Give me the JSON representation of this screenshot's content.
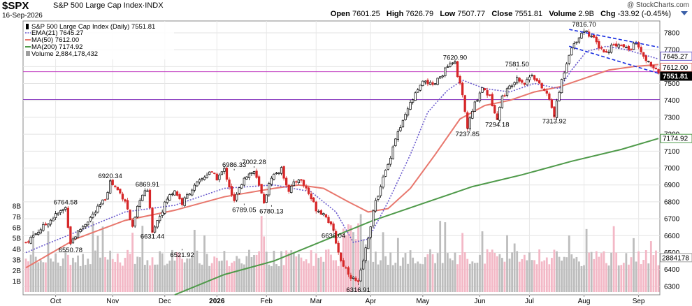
{
  "header": {
    "symbol": "$SPX",
    "description": "S&P 500 Large Cap Index",
    "exchange": "INDX",
    "date": "16-Sep-2026",
    "open_label": "Open",
    "open": "7601.25",
    "high_label": "High",
    "high": "7626.79",
    "low_label": "Low",
    "low": "7507.77",
    "close_label": "Close",
    "close": "7551.81",
    "volume_label": "Volume",
    "volume": "2.9B",
    "chg_label": "Chg",
    "chg": "-33.92 (-0.45%)",
    "watermark": "@ StockCharts.com"
  },
  "legend": {
    "main": "S&P 500 Large Cap Index (Daily) 7551.81",
    "ema": "EMA(21) 7645.27",
    "ma50": "MA(50) 7612.00",
    "ma200": "MA(200) 7174.92",
    "volume": "Volume 2,884,178,432"
  },
  "colors": {
    "up": "#000000",
    "down": "#d62728",
    "ema": "#6a5acd",
    "ma50": "#e8776d",
    "ma200": "#4f9a4a",
    "volume_up": "#bdbdbd",
    "volume_down": "#f3b8c6",
    "hline_upper": "#c03cc0",
    "hline_lower": "#8a3cc0",
    "channel": "#1a2fe0"
  },
  "chart_data": {
    "type": "line",
    "subtype": "candlestick",
    "ylim": [
      6250,
      7870
    ],
    "ytick_values": [
      6300,
      6400,
      6500,
      6600,
      6700,
      6800,
      6900,
      7000,
      7100,
      7200,
      7300,
      7400,
      7500,
      7600,
      7700,
      7800
    ],
    "ytick_labels": [
      "6300",
      "6400",
      "6500",
      "6600",
      "6700",
      "6800",
      "6900",
      "7000",
      "7100",
      "7200",
      "7300",
      "7400",
      "7500",
      "7600",
      "7700",
      "7800"
    ],
    "volume_ticks": [
      "1B",
      "2B",
      "3B",
      "4B",
      "5B",
      "6B",
      "7B",
      "8B"
    ],
    "volume_tick_values": [
      1,
      2,
      3,
      4,
      5,
      6,
      7,
      8
    ],
    "x_labels": [
      "Oct",
      "Nov",
      "Dec",
      "2026",
      "Feb",
      "Mar",
      "Apr",
      "May",
      "Jun",
      "Jul",
      "Aug",
      "Sep"
    ],
    "x_label_day": [
      12,
      35,
      56,
      77,
      97,
      117,
      139,
      160,
      183,
      203,
      225,
      247
    ],
    "n_days": 256,
    "close_points": [
      [
        0,
        6560
      ],
      [
        6,
        6640
      ],
      [
        12,
        6720
      ],
      [
        16,
        6765
      ],
      [
        18,
        6560
      ],
      [
        22,
        6640
      ],
      [
        28,
        6740
      ],
      [
        32,
        6820
      ],
      [
        34,
        6920
      ],
      [
        37,
        6870
      ],
      [
        40,
        6810
      ],
      [
        43,
        6640
      ],
      [
        46,
        6820
      ],
      [
        49,
        6870
      ],
      [
        51,
        6630
      ],
      [
        54,
        6720
      ],
      [
        57,
        6820
      ],
      [
        60,
        6870
      ],
      [
        63,
        6790
      ],
      [
        66,
        6860
      ],
      [
        70,
        6920
      ],
      [
        74,
        6980
      ],
      [
        77,
        6940
      ],
      [
        80,
        6990
      ],
      [
        84,
        6800
      ],
      [
        88,
        6950
      ],
      [
        92,
        6980
      ],
      [
        96,
        6800
      ],
      [
        99,
        6950
      ],
      [
        103,
        6990
      ],
      [
        106,
        6870
      ],
      [
        110,
        6940
      ],
      [
        113,
        6880
      ],
      [
        117,
        6760
      ],
      [
        121,
        6720
      ],
      [
        124,
        6620
      ],
      [
        127,
        6450
      ],
      [
        131,
        6360
      ],
      [
        134,
        6317
      ],
      [
        137,
        6520
      ],
      [
        140,
        6740
      ],
      [
        143,
        6900
      ],
      [
        146,
        7020
      ],
      [
        149,
        7180
      ],
      [
        152,
        7270
      ],
      [
        155,
        7380
      ],
      [
        158,
        7460
      ],
      [
        161,
        7520
      ],
      [
        164,
        7480
      ],
      [
        167,
        7540
      ],
      [
        170,
        7600
      ],
      [
        173,
        7621
      ],
      [
        176,
        7420
      ],
      [
        178,
        7240
      ],
      [
        181,
        7380
      ],
      [
        184,
        7480
      ],
      [
        187,
        7420
      ],
      [
        190,
        7300
      ],
      [
        192,
        7420
      ],
      [
        195,
        7480
      ],
      [
        198,
        7540
      ],
      [
        201,
        7500
      ],
      [
        204,
        7560
      ],
      [
        207,
        7490
      ],
      [
        210,
        7440
      ],
      [
        213,
        7314
      ],
      [
        216,
        7520
      ],
      [
        219,
        7680
      ],
      [
        222,
        7760
      ],
      [
        225,
        7817
      ],
      [
        228,
        7780
      ],
      [
        231,
        7720
      ],
      [
        234,
        7680
      ],
      [
        237,
        7740
      ],
      [
        240,
        7720
      ],
      [
        243,
        7700
      ],
      [
        246,
        7740
      ],
      [
        249,
        7650
      ],
      [
        252,
        7610
      ],
      [
        255,
        7552
      ]
    ],
    "ema_points": [
      [
        0,
        6500
      ],
      [
        20,
        6620
      ],
      [
        40,
        6740
      ],
      [
        60,
        6780
      ],
      [
        80,
        6880
      ],
      [
        100,
        6900
      ],
      [
        115,
        6860
      ],
      [
        125,
        6740
      ],
      [
        132,
        6560
      ],
      [
        138,
        6580
      ],
      [
        146,
        6800
      ],
      [
        155,
        7080
      ],
      [
        162,
        7330
      ],
      [
        170,
        7460
      ],
      [
        176,
        7520
      ],
      [
        185,
        7470
      ],
      [
        195,
        7450
      ],
      [
        205,
        7500
      ],
      [
        215,
        7470
      ],
      [
        220,
        7580
      ],
      [
        226,
        7690
      ],
      [
        234,
        7720
      ],
      [
        242,
        7700
      ],
      [
        255,
        7645
      ]
    ],
    "ma50_points": [
      [
        0,
        6410
      ],
      [
        20,
        6580
      ],
      [
        40,
        6690
      ],
      [
        60,
        6750
      ],
      [
        80,
        6830
      ],
      [
        100,
        6880
      ],
      [
        110,
        6900
      ],
      [
        120,
        6880
      ],
      [
        130,
        6800
      ],
      [
        138,
        6740
      ],
      [
        146,
        6760
      ],
      [
        155,
        6880
      ],
      [
        165,
        7080
      ],
      [
        175,
        7290
      ],
      [
        185,
        7370
      ],
      [
        195,
        7400
      ],
      [
        205,
        7450
      ],
      [
        215,
        7480
      ],
      [
        225,
        7530
      ],
      [
        235,
        7580
      ],
      [
        245,
        7600
      ],
      [
        255,
        7612
      ]
    ],
    "ma200_points": [
      [
        60,
        6250
      ],
      [
        80,
        6370
      ],
      [
        100,
        6450
      ],
      [
        120,
        6570
      ],
      [
        140,
        6690
      ],
      [
        160,
        6790
      ],
      [
        180,
        6890
      ],
      [
        200,
        6960
      ],
      [
        220,
        7040
      ],
      [
        240,
        7110
      ],
      [
        255,
        7175
      ]
    ],
    "annotations": [
      {
        "day": 16,
        "value": 6764.58,
        "label": "6764.58",
        "pos": "above"
      },
      {
        "day": 18,
        "value": 6550.78,
        "label": "6550.78",
        "pos": "below"
      },
      {
        "day": 34,
        "value": 6920.34,
        "label": "6920.34",
        "pos": "above"
      },
      {
        "day": 49,
        "value": 6869.91,
        "label": "6869.91",
        "pos": "above"
      },
      {
        "day": 51,
        "value": 6631.44,
        "label": "6631.44",
        "pos": "below"
      },
      {
        "day": 63,
        "value": 6521.92,
        "label": "6521.92",
        "pos": "below"
      },
      {
        "day": 84,
        "value": 6986.33,
        "label": "6986.33",
        "pos": "above"
      },
      {
        "day": 88,
        "value": 6789.05,
        "label": "6789.05",
        "pos": "below"
      },
      {
        "day": 92,
        "value": 7002.28,
        "label": "7002.28",
        "pos": "above"
      },
      {
        "day": 99,
        "value": 6780.13,
        "label": "6780.13",
        "pos": "below"
      },
      {
        "day": 124,
        "value": 6636.04,
        "label": "6636.04",
        "pos": "below"
      },
      {
        "day": 134,
        "value": 6316.91,
        "label": "6316.91",
        "pos": "below"
      },
      {
        "day": 173,
        "value": 7620.9,
        "label": "7620.90",
        "pos": "above"
      },
      {
        "day": 178,
        "value": 7237.85,
        "label": "7237.85",
        "pos": "below"
      },
      {
        "day": 190,
        "value": 7294.18,
        "label": "7294.18",
        "pos": "below"
      },
      {
        "day": 198,
        "value": 7581.5,
        "label": "7581.50",
        "pos": "above"
      },
      {
        "day": 213,
        "value": 7313.92,
        "label": "7313.92",
        "pos": "below"
      },
      {
        "day": 225,
        "value": 7816.7,
        "label": "7816.70",
        "pos": "above"
      }
    ],
    "hlines": [
      {
        "value": 7570,
        "role": "upper"
      },
      {
        "value": 7405,
        "role": "lower"
      }
    ],
    "channel": [
      [
        [
          219,
          7820
        ],
        [
          255,
          7715
        ]
      ],
      [
        [
          219,
          7720
        ],
        [
          255,
          7560
        ]
      ]
    ],
    "right_labels": [
      {
        "value": 7645.27,
        "label": "7645.27",
        "color": "#6a5acd",
        "fill": "#ffffff",
        "text_color": "#000"
      },
      {
        "value": 7612.0,
        "label": "7612.00",
        "color": "#e8776d",
        "fill": "#ffffff",
        "text_color": "#000"
      },
      {
        "value": 7551.81,
        "label": "7551.81",
        "color": "#000000",
        "fill": "#000000",
        "text_color": "#ffffff"
      },
      {
        "value": 7174.92,
        "label": "7174.92",
        "color": "#4f9a4a",
        "fill": "#ffffff",
        "text_color": "#000"
      }
    ],
    "volume_label": {
      "label": "2884178"
    },
    "x_year_label": "2026"
  }
}
